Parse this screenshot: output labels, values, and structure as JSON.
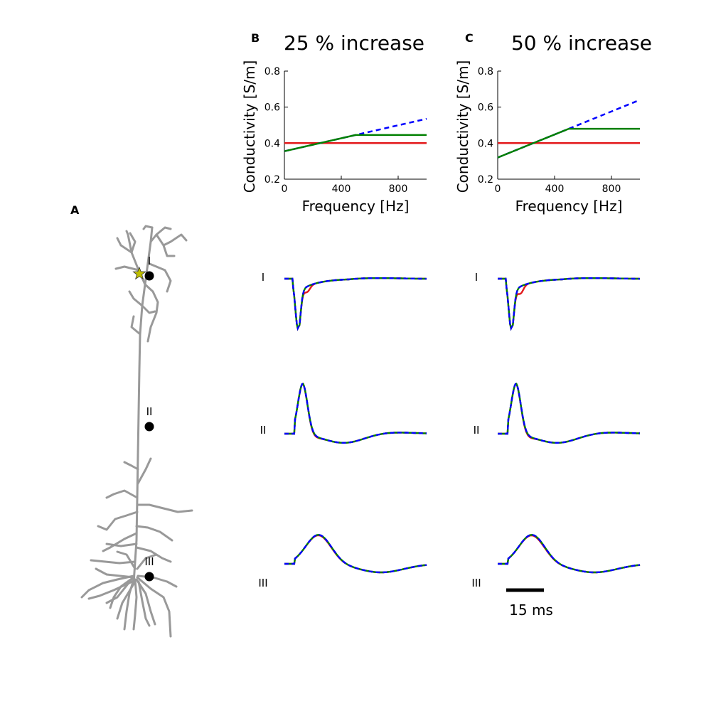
{
  "panel_labels": {
    "a": "A",
    "b": "B",
    "c": "C"
  },
  "neuron": {
    "color": "#999999",
    "marker_color": "#000000",
    "star_color": "#bfbf00",
    "markers": [
      {
        "label": "I",
        "star": true
      },
      {
        "label": "II",
        "star": false
      },
      {
        "label": "III",
        "star": false
      }
    ]
  },
  "colors": {
    "red": "#e31a1c",
    "green": "#008000",
    "blue": "#0000ff"
  },
  "chart_data": [
    {
      "type": "line",
      "panel": "B",
      "title": "25 % increase",
      "xlabel": "Frequency [Hz]",
      "ylabel": "Conductivity [S/m]",
      "xlim": [
        0,
        1000
      ],
      "ylim": [
        0.2,
        0.8
      ],
      "xticks": [
        0,
        400,
        800
      ],
      "yticks": [
        0.2,
        0.4,
        0.6,
        0.8
      ],
      "series": [
        {
          "color": "#e31a1c",
          "style": "solid",
          "x": [
            0,
            1000
          ],
          "y": [
            0.4,
            0.4
          ]
        },
        {
          "color": "#0000ff",
          "style": "dashed",
          "x": [
            0,
            500,
            1000
          ],
          "y": [
            0.355,
            0.445,
            0.535
          ]
        },
        {
          "color": "#008000",
          "style": "solid",
          "x": [
            0,
            500,
            1000
          ],
          "y": [
            0.355,
            0.445,
            0.445
          ]
        }
      ]
    },
    {
      "type": "line",
      "panel": "C",
      "title": "50 % increase",
      "xlabel": "Frequency [Hz]",
      "ylabel": "Conductivity [S/m]",
      "xlim": [
        0,
        1000
      ],
      "ylim": [
        0.2,
        0.8
      ],
      "xticks": [
        0,
        400,
        800
      ],
      "yticks": [
        0.2,
        0.4,
        0.6,
        0.8
      ],
      "series": [
        {
          "color": "#e31a1c",
          "style": "solid",
          "x": [
            0,
            1000
          ],
          "y": [
            0.4,
            0.4
          ]
        },
        {
          "color": "#0000ff",
          "style": "dashed",
          "x": [
            0,
            500,
            1000
          ],
          "y": [
            0.32,
            0.48,
            0.64
          ]
        },
        {
          "color": "#008000",
          "style": "solid",
          "x": [
            0,
            500,
            1000
          ],
          "y": [
            0.32,
            0.48,
            0.48
          ]
        }
      ]
    }
  ],
  "traces": {
    "row_labels": [
      "I",
      "II",
      "III"
    ],
    "scale_bar": {
      "label": "15 ms",
      "duration_ms": 15
    }
  }
}
